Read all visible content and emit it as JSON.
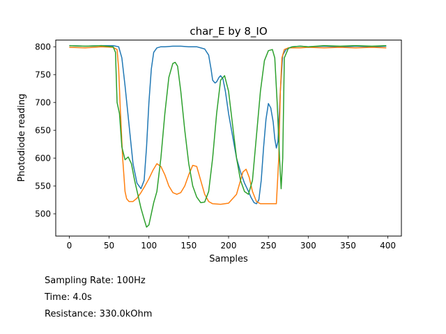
{
  "chart_data": {
    "type": "line",
    "title": "char_E by 8_IO",
    "xlabel": "Samples",
    "ylabel": "Photodiode reading",
    "xlim": [
      -17,
      417
    ],
    "ylim": [
      460,
      812
    ],
    "xticks": [
      0,
      50,
      100,
      150,
      200,
      250,
      300,
      350,
      400
    ],
    "yticks": [
      500,
      550,
      600,
      650,
      700,
      750,
      800
    ],
    "grid": false,
    "series": [
      {
        "color": "#1f77b4",
        "x": [
          0,
          20,
          40,
          55,
          62,
          66,
          70,
          75,
          80,
          85,
          90,
          94,
          97,
          100,
          103,
          106,
          110,
          115,
          120,
          130,
          140,
          150,
          160,
          170,
          175,
          178,
          180,
          183,
          185,
          188,
          190,
          193,
          196,
          200,
          205,
          210,
          215,
          220,
          225,
          228,
          232,
          235,
          238,
          241,
          244,
          247,
          250,
          253,
          256,
          258,
          260,
          262,
          265,
          268,
          272,
          276,
          280,
          290,
          300,
          320,
          340,
          360,
          380,
          398
        ],
        "y": [
          802,
          801,
          802,
          802,
          800,
          780,
          730,
          660,
          590,
          555,
          545,
          560,
          620,
          700,
          760,
          790,
          798,
          800,
          800,
          801,
          801,
          800,
          800,
          796,
          785,
          760,
          740,
          735,
          737,
          745,
          748,
          742,
          720,
          680,
          640,
          600,
          575,
          555,
          540,
          530,
          520,
          518,
          525,
          560,
          620,
          670,
          698,
          690,
          665,
          635,
          618,
          630,
          720,
          785,
          795,
          798,
          800,
          801,
          800,
          801,
          800,
          801,
          800,
          801
        ]
      },
      {
        "color": "#ff7f0e",
        "x": [
          0,
          20,
          40,
          55,
          60,
          62,
          64,
          67,
          70,
          72,
          75,
          80,
          85,
          90,
          95,
          100,
          105,
          110,
          115,
          120,
          125,
          130,
          135,
          140,
          145,
          150,
          155,
          160,
          165,
          170,
          175,
          180,
          190,
          200,
          210,
          215,
          218,
          222,
          226,
          230,
          235,
          240,
          250,
          260,
          263,
          265,
          267,
          270,
          275,
          280,
          290,
          300,
          320,
          340,
          360,
          380,
          398
        ],
        "y": [
          799,
          798,
          800,
          799,
          795,
          760,
          690,
          600,
          540,
          527,
          522,
          522,
          528,
          538,
          550,
          563,
          578,
          590,
          585,
          570,
          550,
          538,
          535,
          538,
          550,
          570,
          587,
          585,
          560,
          535,
          522,
          518,
          517,
          519,
          535,
          560,
          575,
          580,
          565,
          540,
          522,
          518,
          518,
          518,
          600,
          720,
          780,
          795,
          798,
          798,
          798,
          799,
          798,
          799,
          798,
          799,
          798
        ]
      },
      {
        "color": "#2ca02c",
        "x": [
          0,
          20,
          40,
          55,
          58,
          60,
          63,
          66,
          70,
          74,
          78,
          82,
          86,
          90,
          94,
          97,
          100,
          103,
          106,
          110,
          115,
          120,
          125,
          130,
          133,
          136,
          140,
          145,
          150,
          155,
          160,
          165,
          170,
          175,
          180,
          185,
          190,
          195,
          200,
          205,
          210,
          215,
          220,
          225,
          230,
          235,
          240,
          245,
          250,
          255,
          258,
          261,
          264,
          266,
          268,
          270,
          275,
          280,
          290,
          300,
          320,
          340,
          360,
          380,
          398
        ],
        "y": [
          802,
          801,
          802,
          800,
          790,
          700,
          680,
          620,
          597,
          602,
          590,
          560,
          535,
          510,
          490,
          476,
          480,
          500,
          520,
          540,
          600,
          680,
          745,
          770,
          772,
          765,
          720,
          650,
          590,
          550,
          530,
          520,
          521,
          540,
          600,
          680,
          740,
          748,
          720,
          660,
          600,
          560,
          540,
          535,
          560,
          640,
          720,
          775,
          793,
          795,
          780,
          700,
          600,
          545,
          600,
          780,
          797,
          800,
          801,
          800,
          802,
          801,
          802,
          801,
          802
        ]
      }
    ]
  },
  "info": {
    "sampling_rate": "Sampling Rate: 100Hz",
    "time": "Time: 4.0s",
    "resistance": "Resistance: 330.0kOhm"
  }
}
